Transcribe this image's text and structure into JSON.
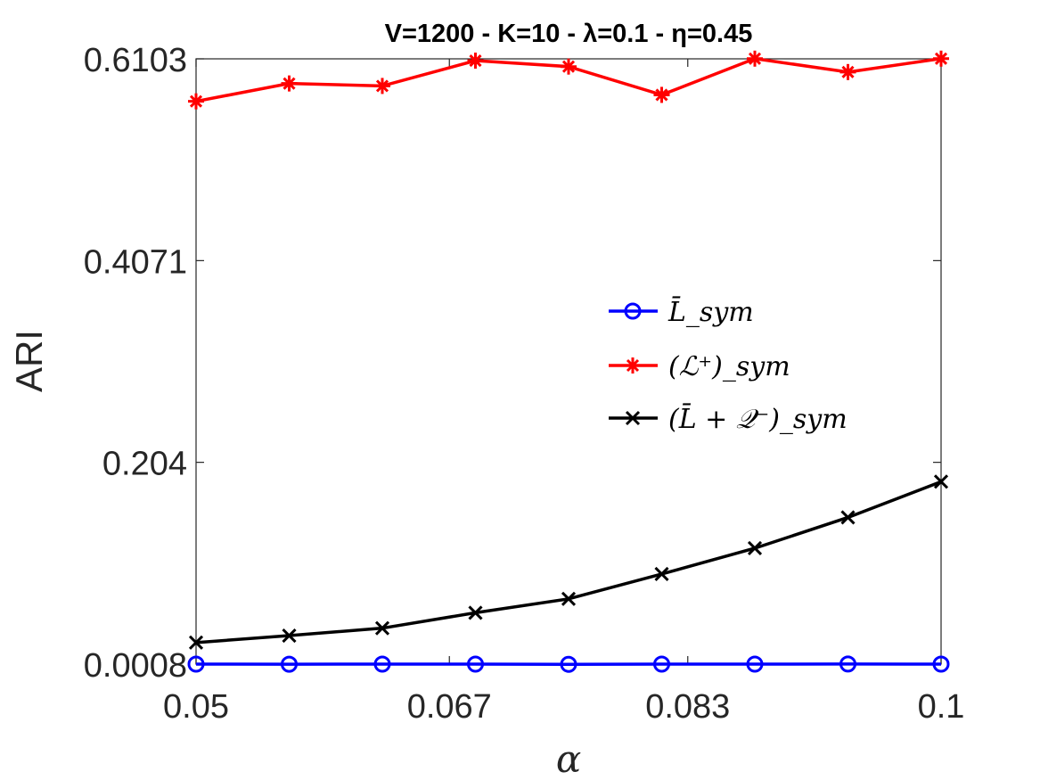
{
  "chart_data": {
    "type": "line",
    "title": "V=1200 - K=10 - λ=0.1 - η=0.45",
    "xlabel": "α",
    "ylabel": "ARI",
    "xlim": [
      0.05,
      0.1
    ],
    "ylim": [
      0.0008,
      0.6103
    ],
    "xticks": [
      0.05,
      0.067,
      0.083,
      0.1
    ],
    "xtick_labels": [
      "0.05",
      "0.067",
      "0.083",
      "0.1"
    ],
    "yticks": [
      0.0008,
      0.204,
      0.4071,
      0.6103
    ],
    "ytick_labels": [
      "0.0008",
      "0.204",
      "0.4071",
      "0.6103"
    ],
    "x": [
      0.05,
      0.05625,
      0.0625,
      0.06875,
      0.075,
      0.08125,
      0.0875,
      0.09375,
      0.1
    ],
    "legend_position": "center-right",
    "series": [
      {
        "name": "L̄_sym",
        "color": "#0000ff",
        "marker": "circle",
        "values": [
          0.0008,
          0.0007,
          0.0008,
          0.0008,
          0.0006,
          0.0008,
          0.0008,
          0.0009,
          0.0008
        ]
      },
      {
        "name": "(ℒ⁺)_sym",
        "color": "#ff0000",
        "marker": "asterisk",
        "values": [
          0.5675,
          0.5855,
          0.583,
          0.6085,
          0.6025,
          0.574,
          0.6105,
          0.597,
          0.6105
        ]
      },
      {
        "name": "(L̄ + 𝒬⁻)_sym",
        "color": "#000000",
        "marker": "x",
        "values": [
          0.0225,
          0.0295,
          0.037,
          0.0525,
          0.0665,
          0.0915,
          0.1175,
          0.1485,
          0.1845
        ]
      }
    ]
  }
}
